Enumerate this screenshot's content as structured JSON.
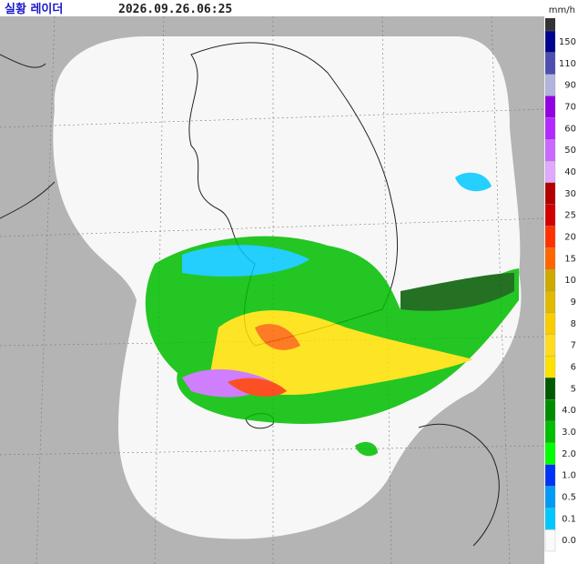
{
  "header": {
    "title": "실황 레이더",
    "timestamp": "2026.09.26.06:25",
    "unit": "mm/h"
  },
  "legend": {
    "labels": [
      "150",
      "110",
      "90",
      "70",
      "60",
      "50",
      "40",
      "30",
      "25",
      "20",
      "15",
      "10",
      "9",
      "8",
      "7",
      "6",
      "5",
      "4.0",
      "3.0",
      "2.0",
      "1.0",
      "0.5",
      "0.1",
      "0.0"
    ],
    "colors": [
      "#000390",
      "#4c4eb1",
      "#b3b4de",
      "#9300e4",
      "#b329ff",
      "#c969ff",
      "#e0a9ff",
      "#b40000",
      "#d20000",
      "#ff3200",
      "#ff6600",
      "#ccaa00",
      "#e0b900",
      "#f9cd00",
      "#ffdc1f",
      "#ffe100",
      "#005a00",
      "#008c00",
      "#00be00",
      "#00ff00",
      "#0033f5",
      "#009bf5",
      "#00c8ff",
      "#fafafa"
    ]
  }
}
